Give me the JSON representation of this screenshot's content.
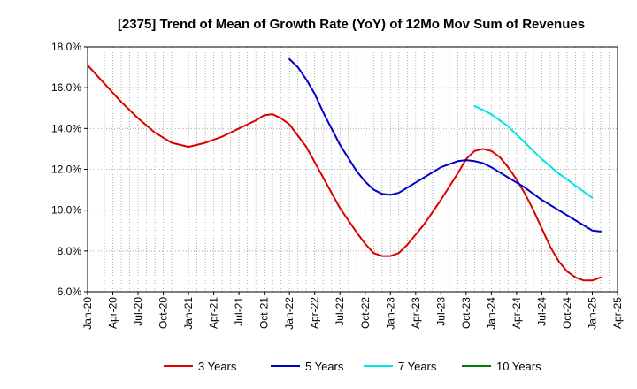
{
  "chart_data": {
    "type": "line",
    "title": "[2375]  Trend of Mean of Growth Rate (YoY) of 12Mo Mov Sum of Revenues",
    "xlabel": "",
    "ylabel": "",
    "ylim": [
      6.0,
      18.0
    ],
    "y_ticks": [
      "6.0%",
      "8.0%",
      "10.0%",
      "12.0%",
      "14.0%",
      "16.0%",
      "18.0%"
    ],
    "x_ticks": [
      "Jan-20",
      "Apr-20",
      "Jul-20",
      "Oct-20",
      "Jan-21",
      "Apr-21",
      "Jul-21",
      "Oct-21",
      "Jan-22",
      "Apr-22",
      "Jul-22",
      "Oct-22",
      "Jan-23",
      "Apr-23",
      "Jul-23",
      "Oct-23",
      "Jan-24",
      "Apr-24",
      "Jul-24",
      "Oct-24",
      "Jan-25",
      "Apr-25"
    ],
    "x_range_months": [
      0,
      63
    ],
    "grid": true,
    "legend_position": "bottom",
    "series": [
      {
        "name": "3 Years",
        "color": "#dd0000",
        "points": [
          [
            0,
            17.1
          ],
          [
            2,
            16.2
          ],
          [
            4,
            15.3
          ],
          [
            6,
            14.5
          ],
          [
            8,
            13.8
          ],
          [
            10,
            13.3
          ],
          [
            12,
            13.1
          ],
          [
            14,
            13.3
          ],
          [
            16,
            13.6
          ],
          [
            18,
            14.0
          ],
          [
            20,
            14.4
          ],
          [
            21,
            14.65
          ],
          [
            22,
            14.7
          ],
          [
            23,
            14.5
          ],
          [
            24,
            14.2
          ],
          [
            26,
            13.1
          ],
          [
            28,
            11.6
          ],
          [
            30,
            10.1
          ],
          [
            32,
            8.9
          ],
          [
            33,
            8.35
          ],
          [
            34,
            7.9
          ],
          [
            35,
            7.75
          ],
          [
            36,
            7.75
          ],
          [
            37,
            7.9
          ],
          [
            38,
            8.3
          ],
          [
            40,
            9.3
          ],
          [
            42,
            10.5
          ],
          [
            44,
            11.8
          ],
          [
            45,
            12.5
          ],
          [
            46,
            12.9
          ],
          [
            47,
            13.0
          ],
          [
            48,
            12.9
          ],
          [
            49,
            12.6
          ],
          [
            50,
            12.1
          ],
          [
            51,
            11.5
          ],
          [
            52,
            10.8
          ],
          [
            53,
            10.0
          ],
          [
            54,
            9.1
          ],
          [
            55,
            8.2
          ],
          [
            56,
            7.5
          ],
          [
            57,
            7.0
          ],
          [
            58,
            6.7
          ],
          [
            59,
            6.55
          ],
          [
            60,
            6.55
          ],
          [
            61,
            6.7
          ]
        ]
      },
      {
        "name": "5 Years",
        "color": "#0000cc",
        "points": [
          [
            24,
            17.4
          ],
          [
            25,
            17.0
          ],
          [
            26,
            16.4
          ],
          [
            27,
            15.7
          ],
          [
            28,
            14.8
          ],
          [
            30,
            13.2
          ],
          [
            32,
            11.9
          ],
          [
            33,
            11.4
          ],
          [
            34,
            11.0
          ],
          [
            35,
            10.8
          ],
          [
            36,
            10.75
          ],
          [
            37,
            10.85
          ],
          [
            38,
            11.1
          ],
          [
            40,
            11.6
          ],
          [
            42,
            12.1
          ],
          [
            44,
            12.4
          ],
          [
            45,
            12.45
          ],
          [
            46,
            12.4
          ],
          [
            47,
            12.3
          ],
          [
            48,
            12.1
          ],
          [
            50,
            11.6
          ],
          [
            52,
            11.1
          ],
          [
            54,
            10.5
          ],
          [
            56,
            10.0
          ],
          [
            58,
            9.5
          ],
          [
            60,
            9.0
          ],
          [
            61,
            8.95
          ]
        ]
      },
      {
        "name": "7 Years",
        "color": "#00e5e5",
        "points": [
          [
            46,
            15.1
          ],
          [
            48,
            14.7
          ],
          [
            50,
            14.1
          ],
          [
            52,
            13.3
          ],
          [
            54,
            12.5
          ],
          [
            56,
            11.8
          ],
          [
            58,
            11.2
          ],
          [
            60,
            10.6
          ]
        ]
      },
      {
        "name": "10 Years",
        "color": "#008000",
        "points": []
      }
    ]
  }
}
